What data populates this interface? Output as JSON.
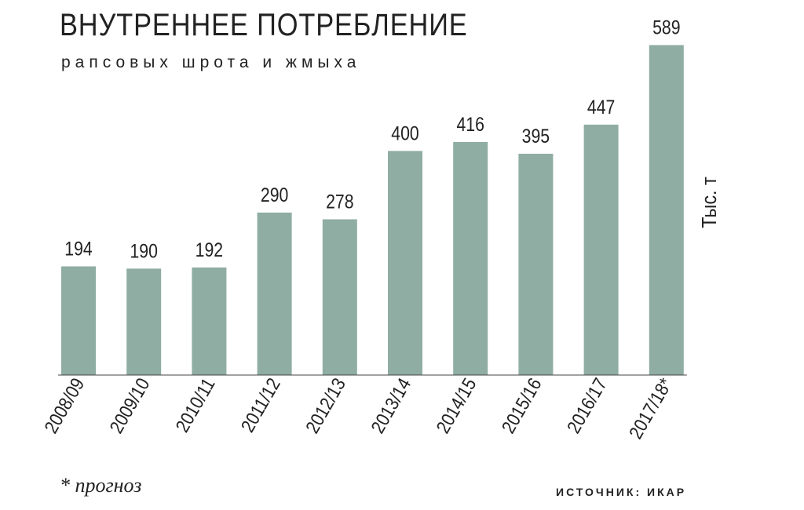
{
  "title": "ВНУТРЕННЕЕ ПОТРЕБЛЕНИЕ",
  "subtitle": "рапсовых шрота и жмыха",
  "footnote": "* прогноз",
  "source": "ИСТОЧНИК: ИКАР",
  "colors": {
    "bar": "#8fada3",
    "text": "#222222",
    "axis": "#444444"
  },
  "chart_data": {
    "type": "bar",
    "title": "ВНУТРЕННЕЕ ПОТРЕБЛЕНИЕ",
    "subtitle": "рапсовых шрота и жмыха",
    "ylabel": "Тыс. т",
    "categories": [
      "2008/09",
      "2009/10",
      "2010/11",
      "2011/12",
      "2012/13",
      "2013/14",
      "2014/15",
      "2015/16",
      "2016/17",
      "2017/18*"
    ],
    "values": [
      194,
      190,
      192,
      290,
      278,
      400,
      416,
      395,
      447,
      589
    ],
    "ylim": [
      0,
      600
    ],
    "grid": false,
    "data_labels": true
  }
}
